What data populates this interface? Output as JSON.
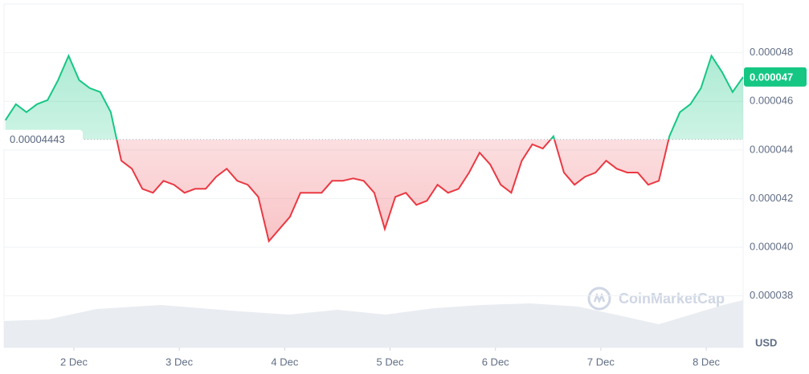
{
  "chart_data": {
    "type": "line",
    "x": [
      1.35,
      1.45,
      1.55,
      1.65,
      1.75,
      1.85,
      1.95,
      2.05,
      2.15,
      2.25,
      2.35,
      2.45,
      2.55,
      2.65,
      2.75,
      2.85,
      2.95,
      3.05,
      3.15,
      3.25,
      3.35,
      3.45,
      3.55,
      3.65,
      3.75,
      3.85,
      3.95,
      4.05,
      4.15,
      4.25,
      4.35,
      4.45,
      4.55,
      4.65,
      4.75,
      4.85,
      4.95,
      5.05,
      5.15,
      5.25,
      5.35,
      5.45,
      5.55,
      5.65,
      5.75,
      5.85,
      5.95,
      6.05,
      6.15,
      6.25,
      6.35,
      6.45,
      6.55,
      6.65,
      6.75,
      6.85,
      6.95,
      7.05,
      7.15,
      7.25,
      7.35,
      7.45,
      7.55,
      7.65,
      7.75,
      7.85,
      7.95,
      8.05,
      8.15,
      8.25,
      8.35
    ],
    "series": [
      {
        "values": [
          4.522e-05,
          4.588e-05,
          4.555e-05,
          4.588e-05,
          4.605e-05,
          4.687e-05,
          4.787e-05,
          4.687e-05,
          4.654e-05,
          4.638e-05,
          4.555e-05,
          4.356e-05,
          4.323e-05,
          4.24e-05,
          4.224e-05,
          4.273e-05,
          4.257e-05,
          4.224e-05,
          4.24e-05,
          4.24e-05,
          4.29e-05,
          4.323e-05,
          4.273e-05,
          4.257e-05,
          4.207e-05,
          4.025e-05,
          4.075e-05,
          4.125e-05,
          4.224e-05,
          4.224e-05,
          4.224e-05,
          4.273e-05,
          4.273e-05,
          4.283e-05,
          4.273e-05,
          4.224e-05,
          4.075e-05,
          4.207e-05,
          4.224e-05,
          4.174e-05,
          4.191e-05,
          4.257e-05,
          4.224e-05,
          4.24e-05,
          4.307e-05,
          4.389e-05,
          4.34e-05,
          4.257e-05,
          4.224e-05,
          4.356e-05,
          4.423e-05,
          4.406e-05,
          4.456e-05,
          4.307e-05,
          4.257e-05,
          4.29e-05,
          4.307e-05,
          4.356e-05,
          4.323e-05,
          4.307e-05,
          4.307e-05,
          4.257e-05,
          4.273e-05,
          4.456e-05,
          4.555e-05,
          4.588e-05,
          4.654e-05,
          4.787e-05,
          4.72e-05,
          4.638e-05,
          4.7e-05
        ]
      }
    ],
    "up_color": "#16c784",
    "down_color": "#ea3943",
    "reference_value": 4.443e-05,
    "current_price": 4.7e-05,
    "xlim": [
      1.337,
      8.35
    ],
    "xticks": [
      {
        "value": 2,
        "label": "2 Dec"
      },
      {
        "value": 3,
        "label": "3 Dec"
      },
      {
        "value": 4,
        "label": "4 Dec"
      },
      {
        "value": 5,
        "label": "5 Dec"
      },
      {
        "value": 6,
        "label": "6 Dec"
      },
      {
        "value": 7,
        "label": "7 Dec"
      },
      {
        "value": 8,
        "label": "8 Dec"
      }
    ],
    "ylim": [
      3.68e-05,
      5e-05
    ],
    "yticks": [
      4.8e-05,
      4.6e-05,
      4.4e-05,
      4.2e-05,
      {
        "value": 4e-05,
        "label": "0.000040"
      },
      3.8e-05
    ],
    "y_axis_label": "USD",
    "watermark": "CoinMarketCap",
    "grid": true
  }
}
